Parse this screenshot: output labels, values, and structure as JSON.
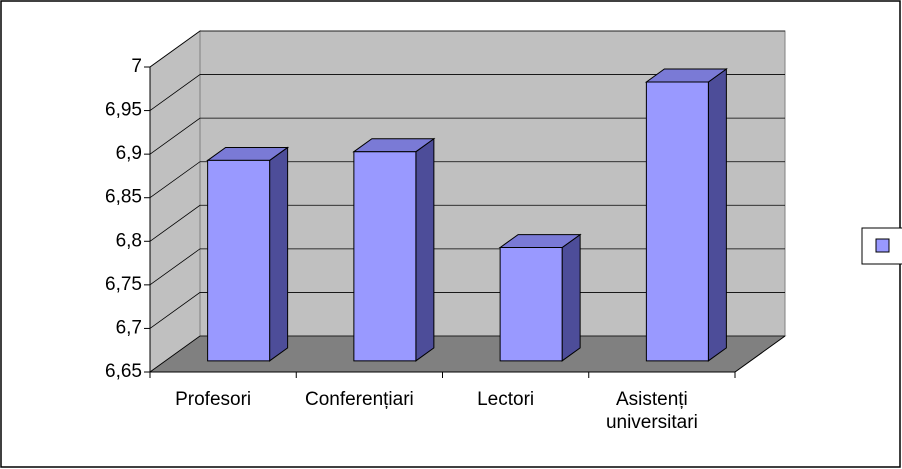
{
  "chart_data": {
    "type": "bar3d",
    "categories": [
      "Profesori",
      "Conferențiari",
      "Lectori",
      "Asistenți universitari"
    ],
    "values": [
      6.88,
      6.89,
      6.78,
      6.97
    ],
    "color": "#9999ff",
    "ylim": [
      6.65,
      7
    ],
    "yticks": [
      {
        "value": 6.65,
        "label": "6,65"
      },
      {
        "value": 6.7,
        "label": "6,7"
      },
      {
        "value": 6.75,
        "label": "6,75"
      },
      {
        "value": 6.8,
        "label": "6,8"
      },
      {
        "value": 6.85,
        "label": "6,85"
      },
      {
        "value": 6.9,
        "label": "6,9"
      },
      {
        "value": 6.95,
        "label": "6,95"
      },
      {
        "value": 7,
        "label": "7"
      }
    ],
    "grid": true
  }
}
